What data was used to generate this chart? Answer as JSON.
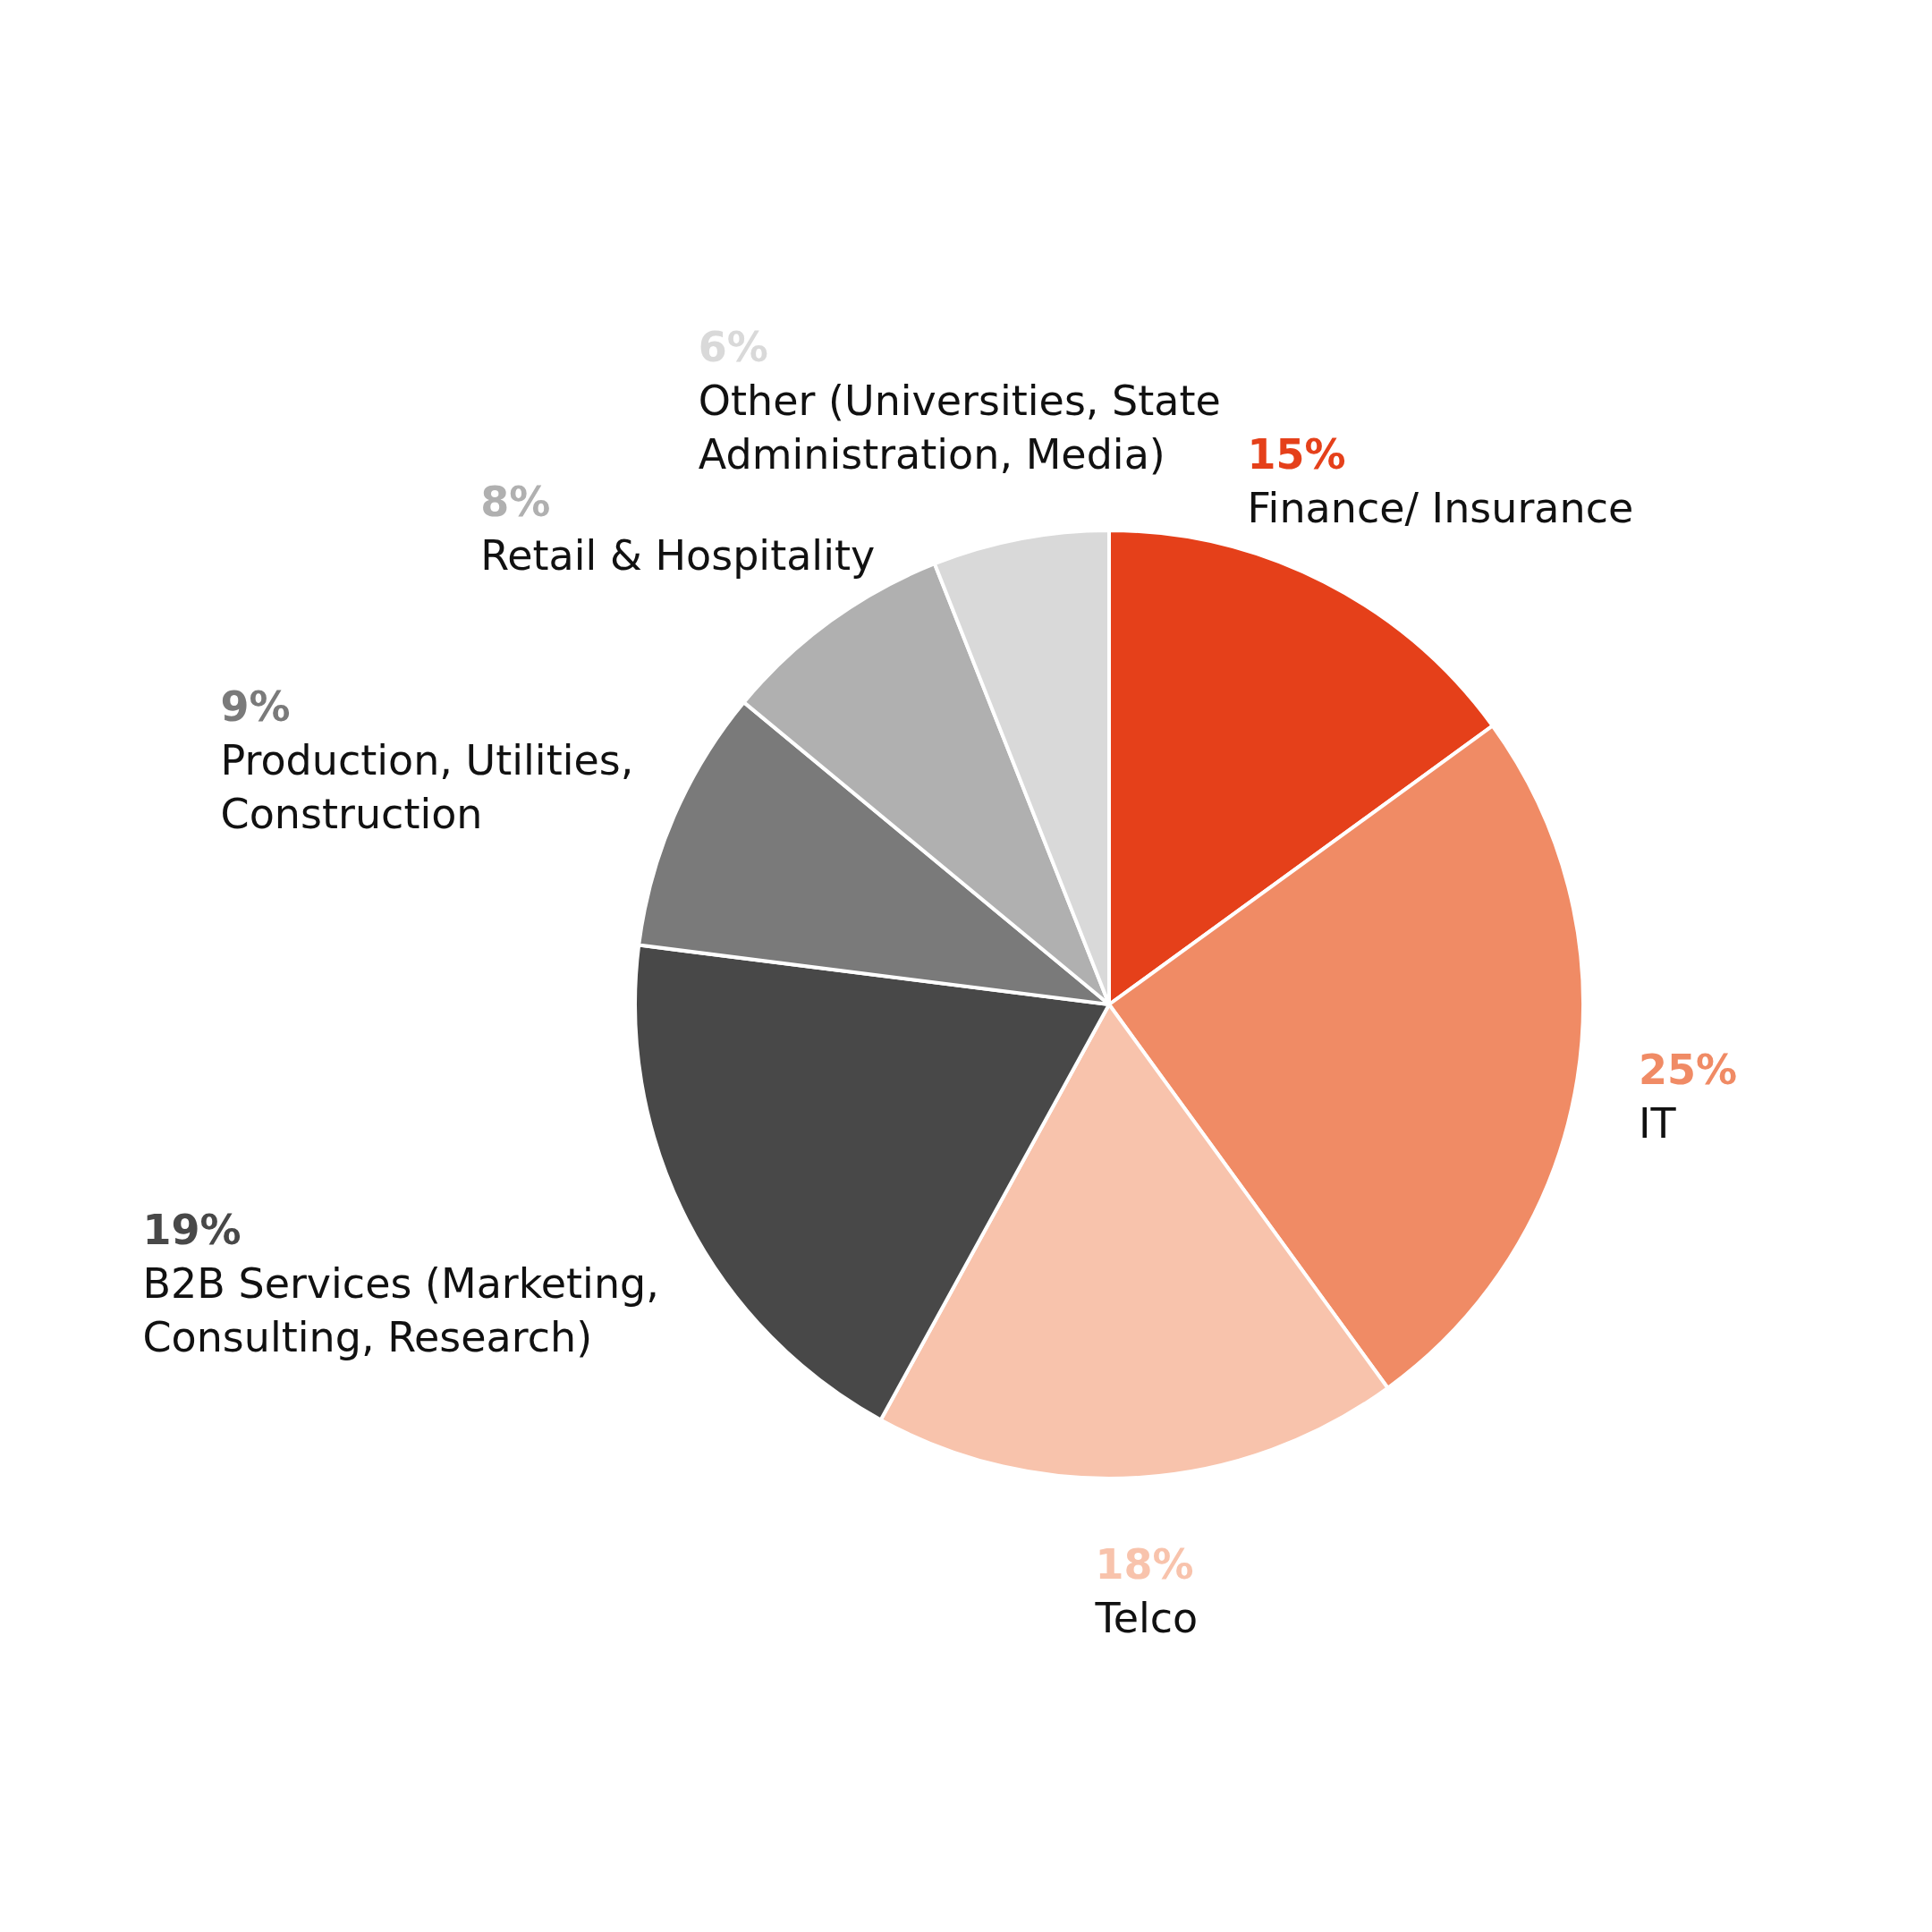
{
  "chart_data": {
    "type": "pie",
    "categories": [
      "Finance/ Insurance",
      "IT",
      "Telco",
      "B2B Services (Marketing, Consulting, Research)",
      "Production, Utilities, Construction",
      "Retail & Hospitality",
      "Other (Universities, State Administration, Media)"
    ],
    "values": [
      15,
      25,
      18,
      19,
      9,
      8,
      6
    ],
    "value_labels": [
      "15%",
      "25%",
      "18%",
      "19%",
      "9%",
      "8%",
      "6%"
    ],
    "colors": [
      "#e5401a",
      "#f08b65",
      "#f8c3ac",
      "#484848",
      "#7a7a7a",
      "#b0b0b0",
      "#d9d9d9"
    ]
  }
}
